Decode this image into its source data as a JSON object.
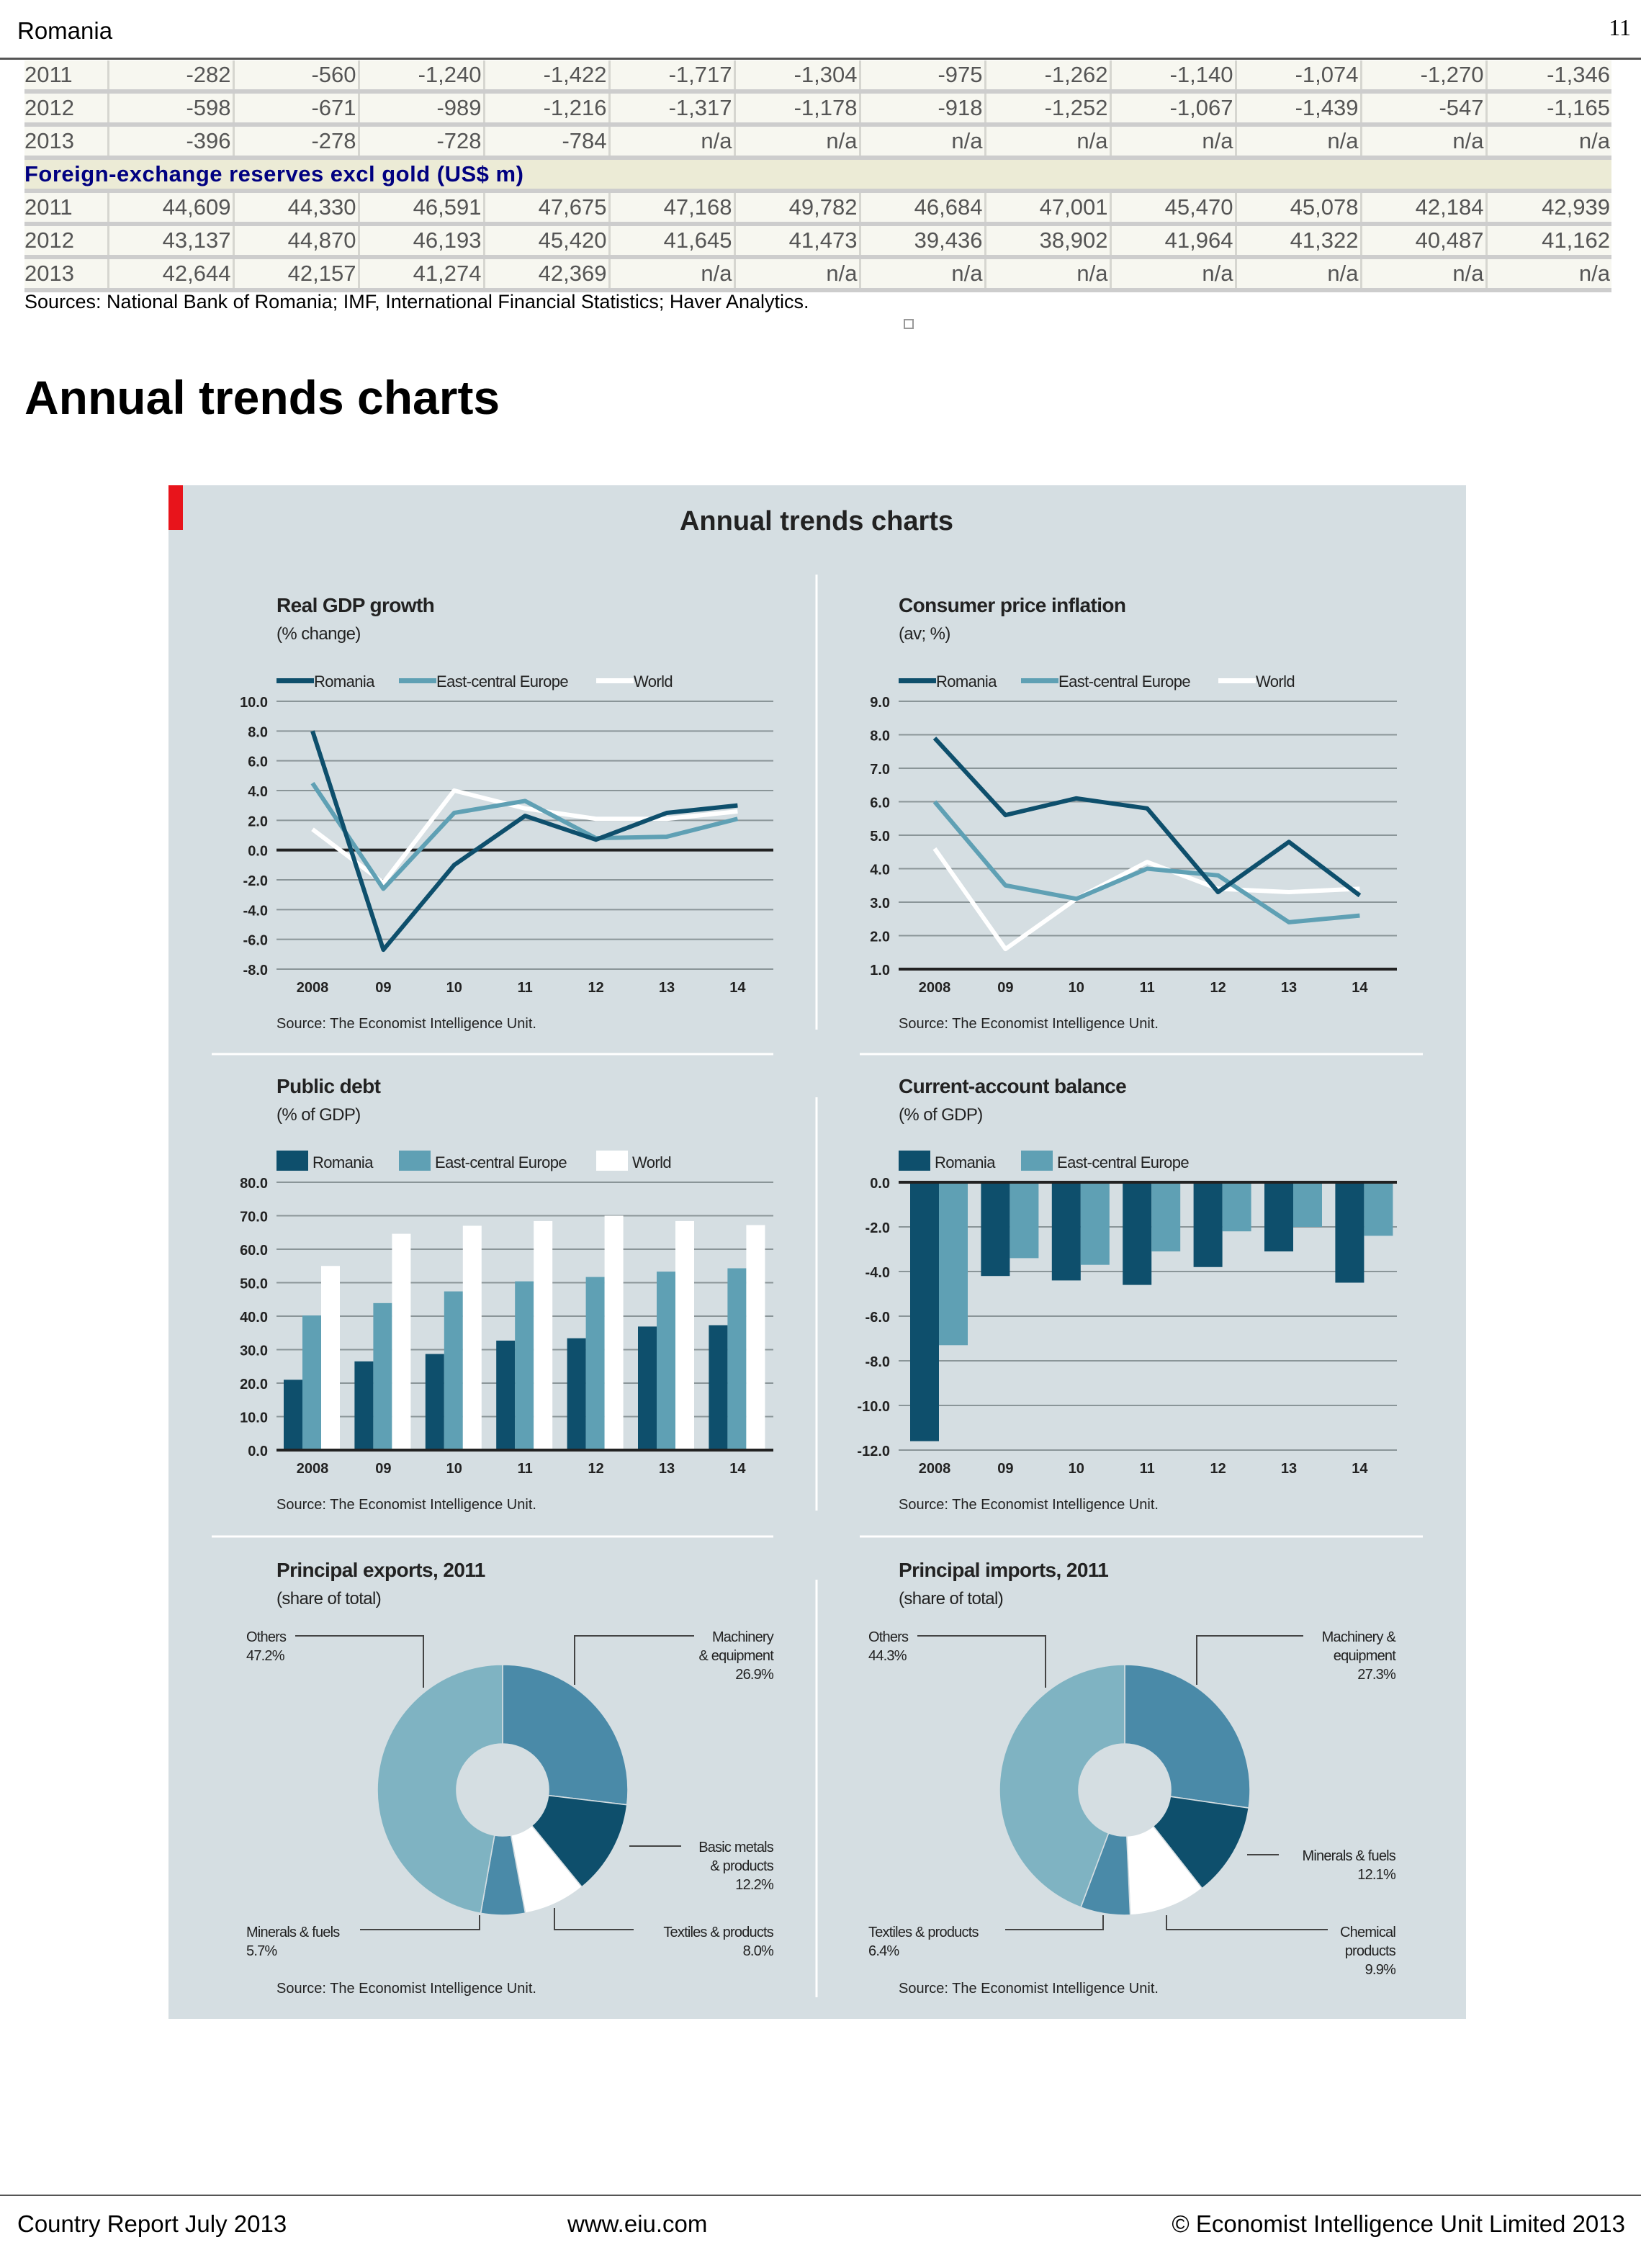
{
  "header": {
    "title": "Romania",
    "page_number": "11"
  },
  "table": {
    "rows_top": [
      {
        "year": "2011",
        "values": [
          "-282",
          "-560",
          "-1,240",
          "-1,422",
          "-1,717",
          "-1,304",
          "-975",
          "-1,262",
          "-1,140",
          "-1,074",
          "-1,270",
          "-1,346"
        ]
      },
      {
        "year": "2012",
        "values": [
          "-598",
          "-671",
          "-989",
          "-1,216",
          "-1,317",
          "-1,178",
          "-918",
          "-1,252",
          "-1,067",
          "-1,439",
          "-547",
          "-1,165"
        ]
      },
      {
        "year": "2013",
        "values": [
          "-396",
          "-278",
          "-728",
          "-784",
          "n/a",
          "n/a",
          "n/a",
          "n/a",
          "n/a",
          "n/a",
          "n/a",
          "n/a"
        ]
      }
    ],
    "section_title": "Foreign-exchange reserves excl gold (US$ m)",
    "rows_fx": [
      {
        "year": "2011",
        "values": [
          "44,609",
          "44,330",
          "46,591",
          "47,675",
          "47,168",
          "49,782",
          "46,684",
          "47,001",
          "45,470",
          "45,078",
          "42,184",
          "42,939"
        ]
      },
      {
        "year": "2012",
        "values": [
          "43,137",
          "44,870",
          "46,193",
          "45,420",
          "41,645",
          "41,473",
          "39,436",
          "38,902",
          "41,964",
          "41,322",
          "40,487",
          "41,162"
        ]
      },
      {
        "year": "2013",
        "values": [
          "42,644",
          "42,157",
          "41,274",
          "42,369",
          "n/a",
          "n/a",
          "n/a",
          "n/a",
          "n/a",
          "n/a",
          "n/a",
          "n/a"
        ]
      }
    ],
    "sources": "Sources: National Bank of Romania; IMF, International Financial Statistics; Haver Analytics."
  },
  "section_title": "Annual trends charts",
  "figure": {
    "title": "Annual trends charts",
    "accent_color": "#e8141b",
    "background_color": "#d5dee2",
    "colors": {
      "Romania": "#0e4f6c",
      "East-central Europe": "#5fa0b4",
      "World": "#ffffff"
    }
  },
  "chart_data": [
    {
      "type": "line",
      "title": "Real GDP growth",
      "subtitle": "(% change)",
      "categories": [
        "2008",
        "09",
        "10",
        "11",
        "12",
        "13",
        "14"
      ],
      "ylim": [
        -8,
        10
      ],
      "yticks": [
        "10.0",
        "8.0",
        "6.0",
        "4.0",
        "2.0",
        "0.0",
        "-2.0",
        "-4.0",
        "-6.0",
        "-8.0"
      ],
      "grid": true,
      "legend": "top",
      "series": [
        {
          "name": "Romania",
          "values": [
            8.0,
            -6.7,
            -1.0,
            2.3,
            0.7,
            2.5,
            3.0
          ]
        },
        {
          "name": "East-central Europe",
          "values": [
            4.5,
            -2.6,
            2.5,
            3.3,
            0.8,
            0.9,
            2.1
          ]
        },
        {
          "name": "World",
          "values": [
            1.4,
            -2.2,
            4.0,
            2.8,
            2.1,
            2.1,
            2.6
          ]
        }
      ],
      "source": "Source: The Economist Intelligence Unit."
    },
    {
      "type": "line",
      "title": "Consumer price inflation",
      "subtitle": "(av; %)",
      "categories": [
        "2008",
        "09",
        "10",
        "11",
        "12",
        "13",
        "14"
      ],
      "ylim": [
        1,
        9
      ],
      "yticks": [
        "9.0",
        "8.0",
        "7.0",
        "6.0",
        "5.0",
        "4.0",
        "3.0",
        "2.0",
        "1.0"
      ],
      "grid": true,
      "legend": "top",
      "series": [
        {
          "name": "Romania",
          "values": [
            7.9,
            5.6,
            6.1,
            5.8,
            3.3,
            4.8,
            3.2
          ]
        },
        {
          "name": "East-central Europe",
          "values": [
            6.0,
            3.5,
            3.1,
            4.0,
            3.8,
            2.4,
            2.6
          ]
        },
        {
          "name": "World",
          "values": [
            4.6,
            1.6,
            3.1,
            4.2,
            3.4,
            3.3,
            3.4
          ]
        }
      ],
      "source": "Source: The Economist Intelligence Unit."
    },
    {
      "type": "bar",
      "title": "Public debt",
      "subtitle": "(% of GDP)",
      "categories": [
        "2008",
        "09",
        "10",
        "11",
        "12",
        "13",
        "14"
      ],
      "ylim": [
        0,
        80
      ],
      "yticks": [
        "80.0",
        "70.0",
        "60.0",
        "50.0",
        "40.0",
        "30.0",
        "20.0",
        "10.0",
        "0.0"
      ],
      "grid": true,
      "legend": "top",
      "series": [
        {
          "name": "Romania",
          "values": [
            21.0,
            26.5,
            28.7,
            32.7,
            33.4,
            36.9,
            37.3
          ]
        },
        {
          "name": "East-central Europe",
          "values": [
            40.2,
            43.9,
            47.4,
            50.4,
            51.7,
            53.3,
            54.3
          ]
        },
        {
          "name": "World",
          "values": [
            55.0,
            64.6,
            67.0,
            68.4,
            70.0,
            68.4,
            67.2
          ]
        }
      ],
      "source": "Source: The Economist Intelligence Unit."
    },
    {
      "type": "bar",
      "title": "Current-account balance",
      "subtitle": "(% of GDP)",
      "categories": [
        "2008",
        "09",
        "10",
        "11",
        "12",
        "13",
        "14"
      ],
      "ylim": [
        -12,
        0
      ],
      "yticks": [
        "0.0",
        "-2.0",
        "-4.0",
        "-6.0",
        "-8.0",
        "-10.0",
        "-12.0"
      ],
      "grid": true,
      "legend": "top",
      "series": [
        {
          "name": "Romania",
          "values": [
            -11.6,
            -4.2,
            -4.4,
            -4.6,
            -3.8,
            -3.1,
            -4.5
          ]
        },
        {
          "name": "East-central Europe",
          "values": [
            -7.3,
            -3.4,
            -3.7,
            -3.1,
            -2.2,
            -2.0,
            -2.4
          ]
        }
      ],
      "source": "Source: The Economist Intelligence Unit."
    },
    {
      "type": "pie",
      "title": "Principal exports, 2011",
      "subtitle": "(share of total)",
      "slices": [
        {
          "label": [
            "Machinery",
            "& equipment"
          ],
          "value": 26.9,
          "value_label": "26.9%",
          "color": "#4a8aa8"
        },
        {
          "label": [
            "Basic metals",
            "& products"
          ],
          "value": 12.2,
          "value_label": "12.2%",
          "color": "#0e4f6c"
        },
        {
          "label": [
            "Textiles & products"
          ],
          "value": 8.0,
          "value_label": "8.0%",
          "color": "#ffffff"
        },
        {
          "label": [
            "Minerals & fuels"
          ],
          "value": 5.7,
          "value_label": "5.7%",
          "color": "#4a8aa8"
        },
        {
          "label": [
            "Others"
          ],
          "value": 47.2,
          "value_label": "47.2%",
          "color": "#7fb3c2"
        }
      ],
      "source": "Source: The Economist Intelligence Unit."
    },
    {
      "type": "pie",
      "title": "Principal imports, 2011",
      "subtitle": "(share of total)",
      "slices": [
        {
          "label": [
            "Machinery &",
            "equipment"
          ],
          "value": 27.3,
          "value_label": "27.3%",
          "color": "#4a8aa8"
        },
        {
          "label": [
            "Minerals & fuels"
          ],
          "value": 12.1,
          "value_label": "12.1%",
          "color": "#0e4f6c"
        },
        {
          "label": [
            "Chemical",
            "products"
          ],
          "value": 9.9,
          "value_label": "9.9%",
          "color": "#ffffff"
        },
        {
          "label": [
            "Textiles & products"
          ],
          "value": 6.4,
          "value_label": "6.4%",
          "color": "#4a8aa8"
        },
        {
          "label": [
            "Others"
          ],
          "value": 44.3,
          "value_label": "44.3%",
          "color": "#7fb3c2"
        }
      ],
      "source": "Source: The Economist Intelligence Unit."
    }
  ],
  "footer": {
    "left": "Country Report July 2013",
    "center": "www.eiu.com",
    "right": "© Economist Intelligence Unit Limited 2013"
  }
}
